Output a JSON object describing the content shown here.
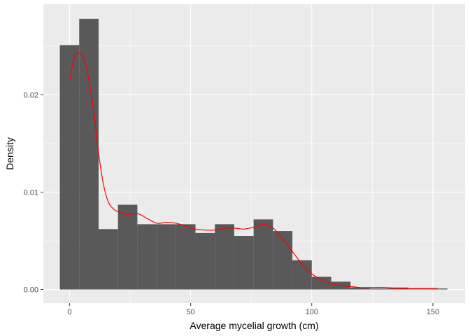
{
  "chart_data": {
    "type": "histogram",
    "title": "",
    "xlabel": "Average mycelial growth (cm)",
    "ylabel": "Density",
    "xlim": [
      -10.8,
      163.3
    ],
    "ylim": [
      -0.0014,
      0.0293
    ],
    "x_ticks": [
      0,
      50,
      100,
      150
    ],
    "x_tick_labels": [
      "0",
      "50",
      "100",
      "150"
    ],
    "y_ticks": [
      0.0,
      0.01,
      0.02
    ],
    "y_tick_labels": [
      "0.00",
      "0.01",
      "0.02"
    ],
    "bin_width": 8,
    "bins": [
      {
        "x0": -4,
        "x1": 4,
        "density": 0.0251
      },
      {
        "x0": 4,
        "x1": 12,
        "density": 0.0278
      },
      {
        "x0": 12,
        "x1": 20,
        "density": 0.0062
      },
      {
        "x0": 20,
        "x1": 28,
        "density": 0.0087
      },
      {
        "x0": 28,
        "x1": 36,
        "density": 0.0067
      },
      {
        "x0": 36,
        "x1": 44,
        "density": 0.0067
      },
      {
        "x0": 44,
        "x1": 52,
        "density": 0.0067
      },
      {
        "x0": 52,
        "x1": 60,
        "density": 0.0058
      },
      {
        "x0": 60,
        "x1": 68,
        "density": 0.0067
      },
      {
        "x0": 68,
        "x1": 76,
        "density": 0.0055
      },
      {
        "x0": 76,
        "x1": 84,
        "density": 0.0072
      },
      {
        "x0": 84,
        "x1": 92,
        "density": 0.006
      },
      {
        "x0": 92,
        "x1": 100,
        "density": 0.003
      },
      {
        "x0": 100,
        "x1": 108,
        "density": 0.0013
      },
      {
        "x0": 108,
        "x1": 116,
        "density": 0.0008
      },
      {
        "x0": 116,
        "x1": 124,
        "density": 0.0002
      },
      {
        "x0": 124,
        "x1": 132,
        "density": 0.0001
      },
      {
        "x0": 132,
        "x1": 140,
        "density": 0.0002
      },
      {
        "x0": 140,
        "x1": 148,
        "density": 0.0001
      },
      {
        "x0": 148,
        "x1": 156,
        "density": 0.0001
      }
    ],
    "density_curve": {
      "color": "#ff0000",
      "x": [
        0,
        2,
        4,
        6,
        8,
        10,
        12,
        14,
        16,
        18,
        20,
        24,
        28,
        32,
        36,
        40,
        44,
        48,
        52,
        56,
        60,
        64,
        68,
        72,
        76,
        80,
        84,
        88,
        92,
        96,
        100,
        104,
        108,
        112,
        116,
        120,
        124,
        130,
        136,
        142,
        148,
        152
      ],
      "y": [
        0.0214,
        0.0238,
        0.0243,
        0.0237,
        0.0215,
        0.0182,
        0.014,
        0.0108,
        0.009,
        0.0083,
        0.008,
        0.0077,
        0.0078,
        0.0073,
        0.0068,
        0.0069,
        0.0068,
        0.0065,
        0.0062,
        0.0061,
        0.0061,
        0.0063,
        0.0063,
        0.0062,
        0.0064,
        0.0067,
        0.0063,
        0.0052,
        0.0039,
        0.0026,
        0.0016,
        0.001,
        0.0006,
        0.0004,
        0.0003,
        0.0002,
        0.0002,
        0.0002,
        0.0001,
        0.0001,
        0.0001,
        0.0001
      ]
    },
    "colors": {
      "bar_fill": "#595959",
      "panel_background": "#ebebeb",
      "grid_major": "#ffffff",
      "curve": "#ff0000"
    },
    "grid": true
  }
}
